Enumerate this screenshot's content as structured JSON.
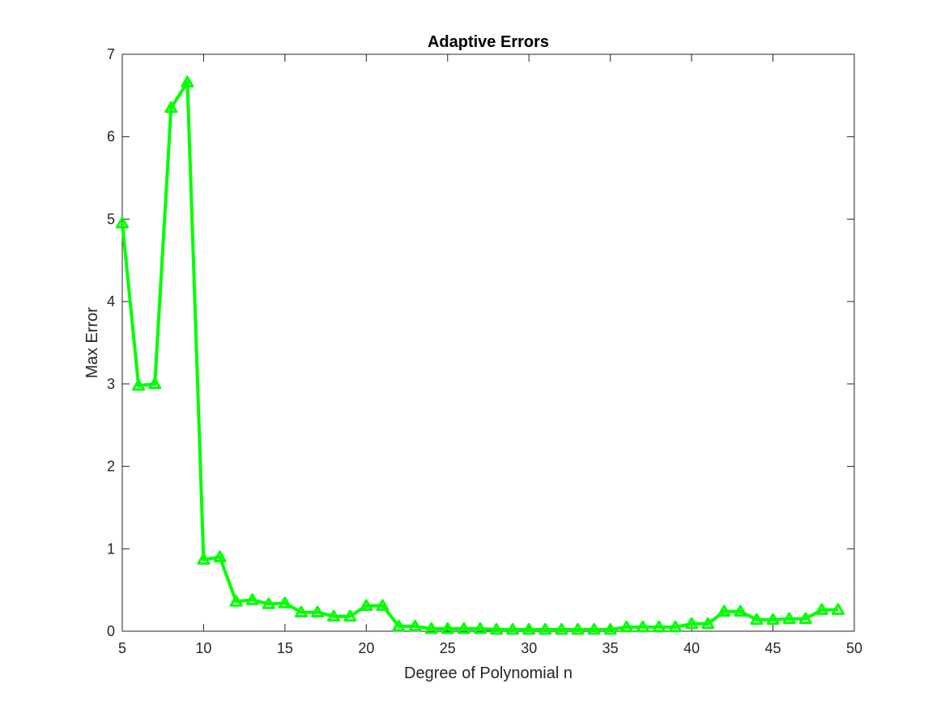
{
  "chart_data": {
    "type": "line",
    "title": "Adaptive Errors",
    "xlabel": "Degree of Polynomial n",
    "ylabel": "Max Error",
    "xlim": [
      5,
      50
    ],
    "ylim": [
      0,
      7
    ],
    "xticks": [
      5,
      10,
      15,
      20,
      25,
      30,
      35,
      40,
      45,
      50
    ],
    "yticks": [
      0,
      1,
      2,
      3,
      4,
      5,
      6,
      7
    ],
    "grid": false,
    "series": [
      {
        "color": "#00ff00",
        "marker": "triangle",
        "x": [
          5,
          6,
          7,
          8,
          9,
          10,
          11,
          12,
          13,
          14,
          15,
          16,
          17,
          18,
          19,
          20,
          21,
          22,
          23,
          24,
          25,
          26,
          27,
          28,
          29,
          30,
          31,
          32,
          33,
          34,
          35,
          36,
          37,
          38,
          39,
          40,
          41,
          42,
          43,
          44,
          45,
          46,
          47,
          48,
          49
        ],
        "y": [
          4.95,
          2.98,
          3.0,
          6.35,
          6.66,
          0.87,
          0.9,
          0.36,
          0.38,
          0.33,
          0.34,
          0.23,
          0.23,
          0.18,
          0.18,
          0.31,
          0.31,
          0.06,
          0.06,
          0.03,
          0.03,
          0.03,
          0.03,
          0.02,
          0.02,
          0.02,
          0.02,
          0.02,
          0.02,
          0.02,
          0.02,
          0.05,
          0.05,
          0.05,
          0.05,
          0.09,
          0.09,
          0.24,
          0.24,
          0.14,
          0.14,
          0.15,
          0.15,
          0.26,
          0.26
        ]
      }
    ]
  }
}
